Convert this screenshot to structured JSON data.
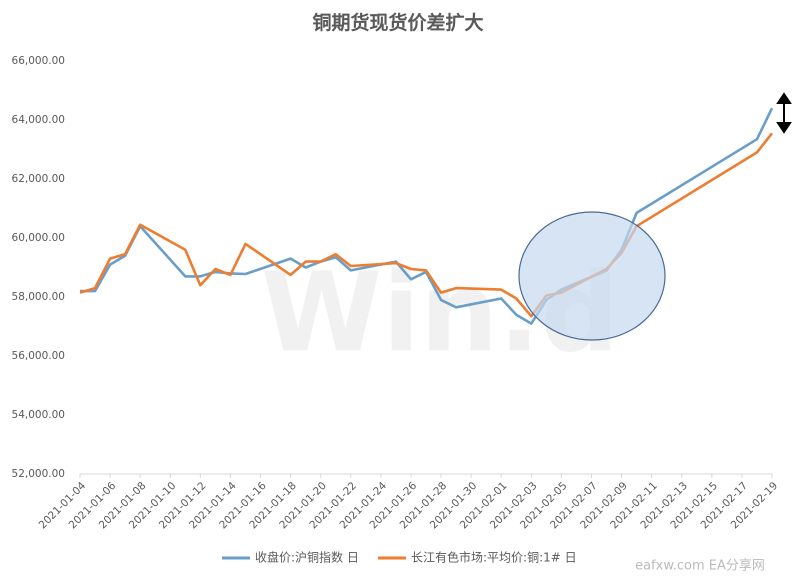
{
  "chart_data": {
    "type": "line",
    "title": "铜期货现货价差扩大",
    "x": [
      "2021-01-04",
      "2021-01-05",
      "2021-01-06",
      "2021-01-07",
      "2021-01-08",
      "2021-01-11",
      "2021-01-12",
      "2021-01-13",
      "2021-01-14",
      "2021-01-15",
      "2021-01-18",
      "2021-01-19",
      "2021-01-20",
      "2021-01-21",
      "2021-01-22",
      "2021-01-25",
      "2021-01-26",
      "2021-01-27",
      "2021-01-28",
      "2021-01-29",
      "2021-02-01",
      "2021-02-02",
      "2021-02-03",
      "2021-02-04",
      "2021-02-05",
      "2021-02-08",
      "2021-02-09",
      "2021-02-10",
      "2021-02-18",
      "2021-02-19"
    ],
    "series": [
      {
        "name": "收盘价:沪铜指数 日",
        "color": "#6a9ec8",
        "values": [
          58200,
          58200,
          59100,
          59400,
          60400,
          58700,
          58700,
          58850,
          58800,
          58780,
          59300,
          59000,
          59200,
          59350,
          58900,
          59200,
          58600,
          58850,
          57900,
          57650,
          57950,
          57400,
          57100,
          57900,
          58250,
          58900,
          59600,
          60850,
          63350,
          64400
        ]
      },
      {
        "name": "长江有色市场:平均价:铜:1# 日",
        "color": "#ed7d31",
        "values": [
          58150,
          58300,
          59300,
          59450,
          60450,
          59600,
          58400,
          58950,
          58750,
          59800,
          58750,
          59200,
          59200,
          59450,
          59050,
          59150,
          58950,
          58900,
          58150,
          58300,
          58250,
          57950,
          57350,
          58050,
          58150,
          58950,
          59500,
          60400,
          62900,
          63550
        ]
      }
    ],
    "xlim": [
      "2021-01-04",
      "2021-02-19"
    ],
    "xticks": [
      "2021-01-04",
      "2021-01-06",
      "2021-01-08",
      "2021-01-10",
      "2021-01-12",
      "2021-01-14",
      "2021-01-16",
      "2021-01-18",
      "2021-01-20",
      "2021-01-22",
      "2021-01-24",
      "2021-01-26",
      "2021-01-28",
      "2021-01-30",
      "2021-02-01",
      "2021-02-03",
      "2021-02-05",
      "2021-02-07",
      "2021-02-09",
      "2021-02-11",
      "2021-02-13",
      "2021-02-15",
      "2021-02-17",
      "2021-02-19"
    ],
    "ylim": [
      52000,
      66000
    ],
    "yticks": [
      {
        "value": 52000,
        "label": "52,000.00"
      },
      {
        "value": 54000,
        "label": "54,000.00"
      },
      {
        "value": 56000,
        "label": "56,000.00"
      },
      {
        "value": 58000,
        "label": "58,000.00"
      },
      {
        "value": 60000,
        "label": "60,000.00"
      },
      {
        "value": 62000,
        "label": "62,000.00"
      },
      {
        "value": 64000,
        "label": "64,000.00"
      },
      {
        "value": 66000,
        "label": "66,000.00"
      }
    ],
    "grid": false,
    "watermark": "Win.d",
    "site_watermark": "eafxw.com EA分享网"
  }
}
